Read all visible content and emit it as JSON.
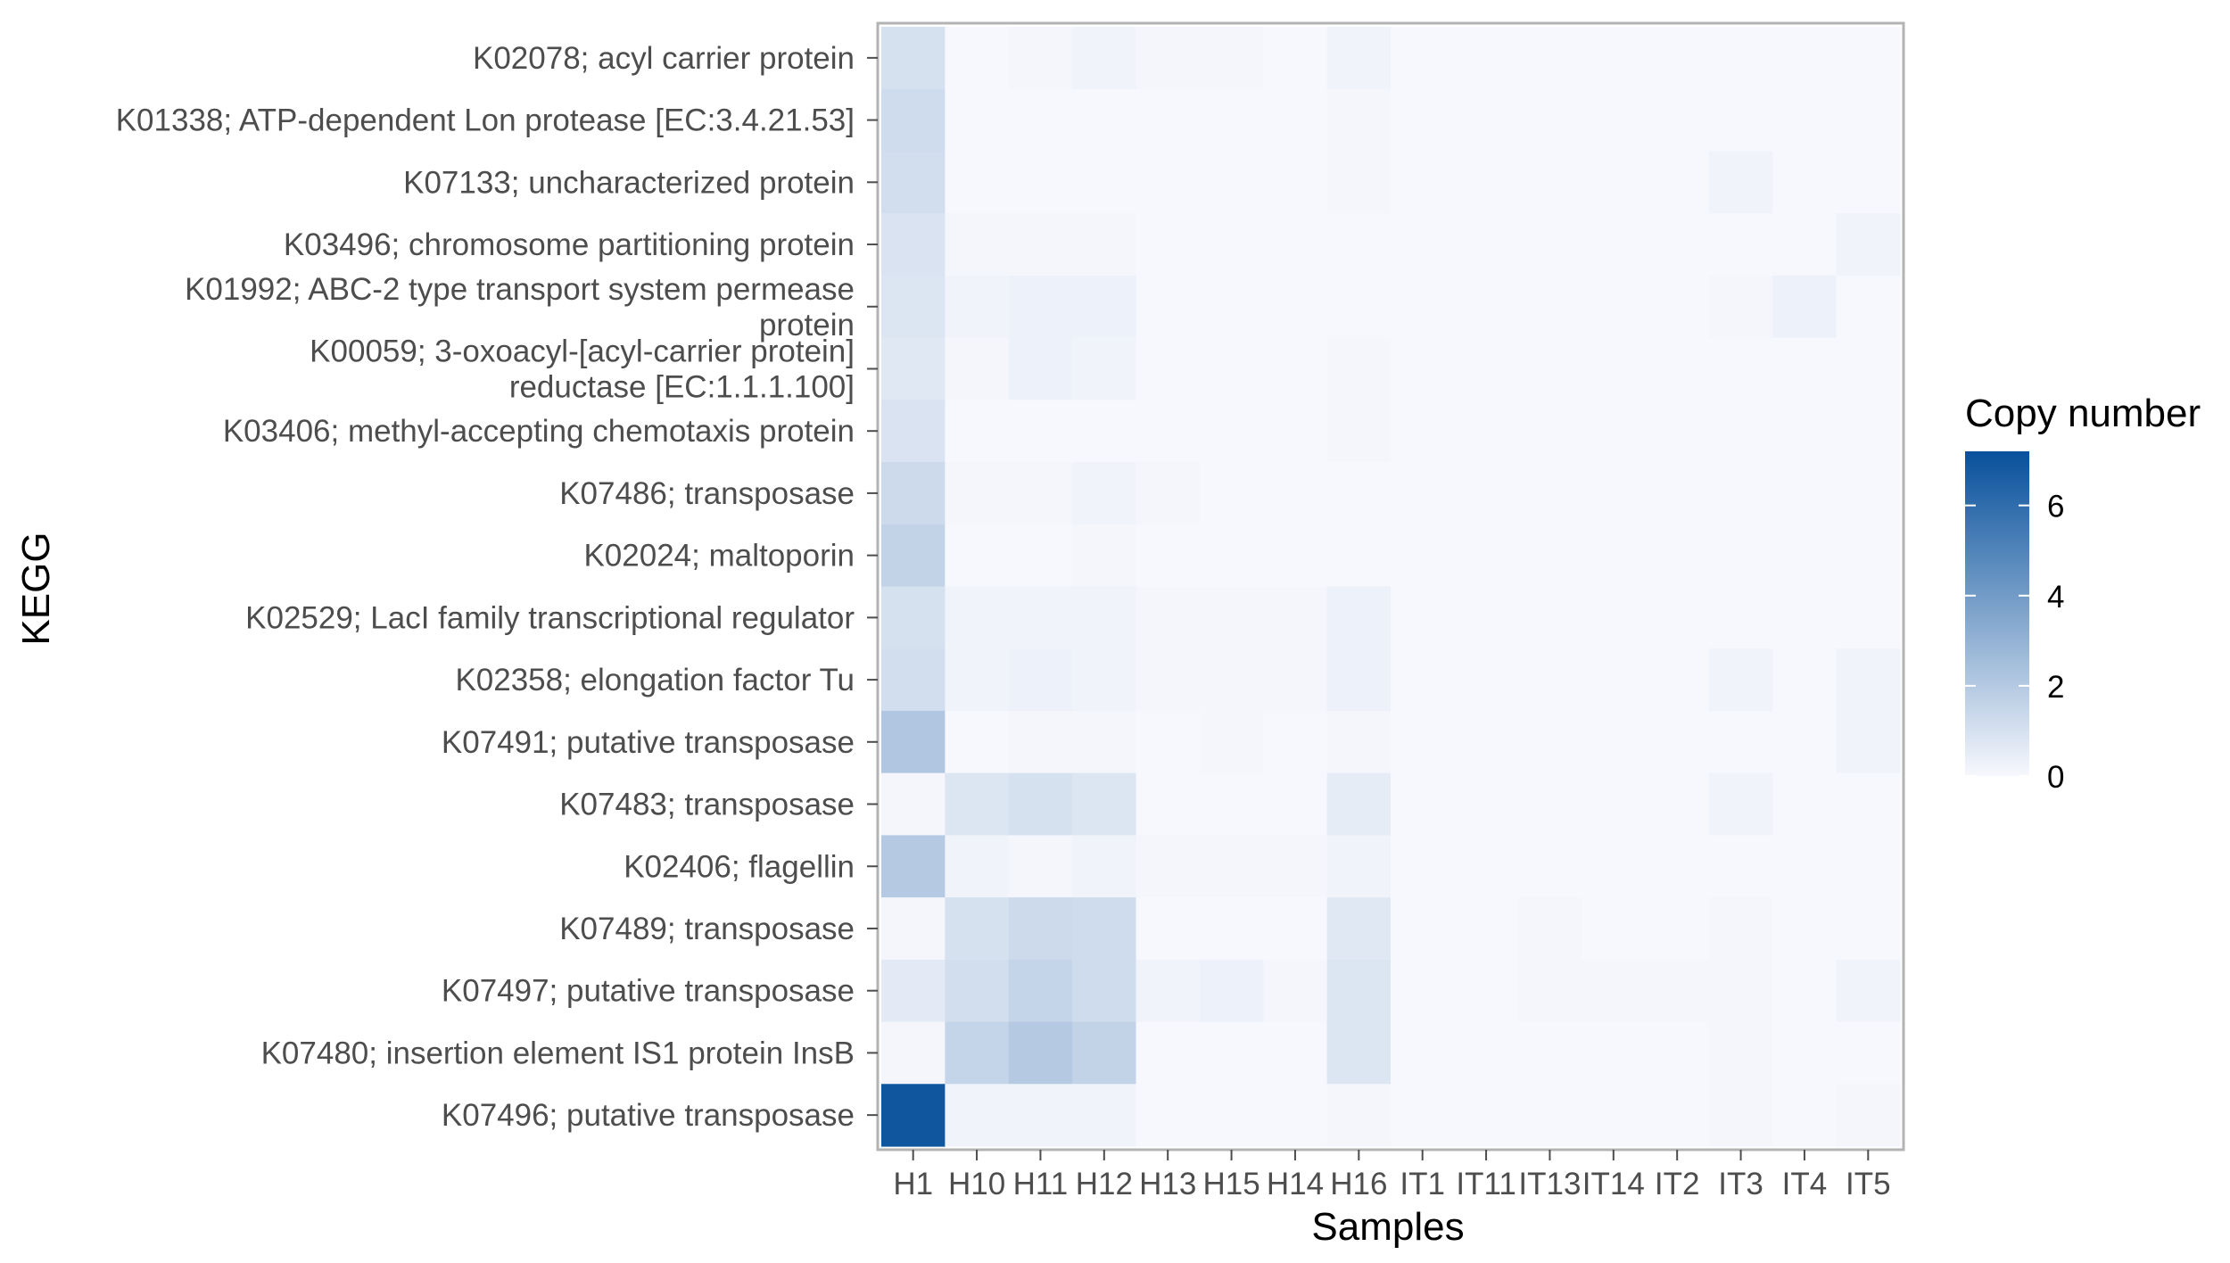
{
  "chart_data": {
    "type": "heatmap",
    "title": "",
    "xlabel": "Samples",
    "ylabel": "KEGG",
    "x_categories": [
      "H1",
      "H10",
      "H11",
      "H12",
      "H13",
      "H15",
      "H14",
      "H16",
      "IT1",
      "IT11",
      "IT13",
      "IT14",
      "IT2",
      "IT3",
      "IT4",
      "IT5"
    ],
    "y_categories": [
      [
        "K02078; acyl carrier protein"
      ],
      [
        "K01338; ATP-dependent Lon protease [EC:3.4.21.53]"
      ],
      [
        "K07133; uncharacterized protein"
      ],
      [
        "K03496; chromosome partitioning protein"
      ],
      [
        "K01992; ABC-2 type transport system permease",
        "protein"
      ],
      [
        "K00059; 3-oxoacyl-[acyl-carrier protein]",
        "reductase [EC:1.1.1.100]"
      ],
      [
        "K03406; methyl-accepting chemotaxis protein"
      ],
      [
        "K07486; transposase"
      ],
      [
        "K02024; maltoporin"
      ],
      [
        "K02529; LacI family transcriptional regulator"
      ],
      [
        "K02358; elongation factor Tu"
      ],
      [
        "K07491; putative transposase"
      ],
      [
        "K07483; transposase"
      ],
      [
        "K02406; flagellin"
      ],
      [
        "K07489; transposase"
      ],
      [
        "K07497; putative transposase"
      ],
      [
        "K07480; insertion element IS1 protein InsB"
      ],
      [
        "K07496; putative transposase"
      ]
    ],
    "values": [
      [
        1.0,
        0.0,
        0.1,
        0.2,
        0.1,
        0.1,
        0.0,
        0.2,
        0.0,
        0.0,
        0.0,
        0.0,
        0.0,
        0.0,
        0.0,
        0.0
      ],
      [
        1.2,
        0.0,
        0.0,
        0.0,
        0.0,
        0.0,
        0.0,
        0.1,
        0.0,
        0.0,
        0.0,
        0.0,
        0.0,
        0.0,
        0.0,
        0.0
      ],
      [
        1.1,
        0.0,
        0.0,
        0.0,
        0.0,
        0.0,
        0.0,
        0.1,
        0.0,
        0.0,
        0.0,
        0.0,
        0.0,
        0.2,
        0.0,
        0.0
      ],
      [
        0.9,
        0.1,
        0.1,
        0.1,
        0.0,
        0.0,
        0.0,
        0.0,
        0.0,
        0.0,
        0.0,
        0.0,
        0.0,
        0.0,
        0.0,
        0.2
      ],
      [
        0.8,
        0.2,
        0.3,
        0.3,
        0.0,
        0.0,
        0.0,
        0.0,
        0.0,
        0.0,
        0.0,
        0.0,
        0.0,
        0.1,
        0.3,
        0.0
      ],
      [
        0.7,
        0.1,
        0.3,
        0.2,
        0.0,
        0.0,
        0.0,
        0.1,
        0.0,
        0.0,
        0.0,
        0.0,
        0.0,
        0.0,
        0.0,
        0.0
      ],
      [
        0.9,
        0.0,
        0.0,
        0.0,
        0.0,
        0.0,
        0.0,
        0.1,
        0.0,
        0.0,
        0.0,
        0.0,
        0.0,
        0.0,
        0.0,
        0.0
      ],
      [
        1.3,
        0.1,
        0.1,
        0.2,
        0.1,
        0.0,
        0.0,
        0.0,
        0.0,
        0.0,
        0.0,
        0.0,
        0.0,
        0.0,
        0.0,
        0.0
      ],
      [
        1.6,
        0.0,
        0.0,
        0.1,
        0.0,
        0.0,
        0.0,
        0.0,
        0.0,
        0.0,
        0.0,
        0.0,
        0.0,
        0.0,
        0.0,
        0.0
      ],
      [
        1.0,
        0.2,
        0.2,
        0.2,
        0.1,
        0.1,
        0.1,
        0.3,
        0.0,
        0.0,
        0.0,
        0.0,
        0.0,
        0.0,
        0.0,
        0.0
      ],
      [
        1.1,
        0.2,
        0.3,
        0.2,
        0.1,
        0.1,
        0.1,
        0.3,
        0.0,
        0.0,
        0.0,
        0.0,
        0.0,
        0.2,
        0.0,
        0.2
      ],
      [
        2.1,
        0.0,
        0.1,
        0.1,
        0.0,
        0.1,
        0.0,
        0.1,
        0.0,
        0.0,
        0.0,
        0.0,
        0.0,
        0.0,
        0.0,
        0.2
      ],
      [
        0.1,
        0.8,
        1.0,
        0.8,
        0.0,
        0.0,
        0.0,
        0.5,
        0.0,
        0.0,
        0.0,
        0.0,
        0.0,
        0.2,
        0.0,
        0.0
      ],
      [
        2.0,
        0.2,
        0.1,
        0.2,
        0.1,
        0.1,
        0.1,
        0.2,
        0.0,
        0.0,
        0.0,
        0.0,
        0.0,
        0.0,
        0.0,
        0.0
      ],
      [
        0.1,
        1.0,
        1.3,
        1.2,
        0.0,
        0.0,
        0.0,
        0.7,
        0.0,
        0.0,
        0.1,
        0.0,
        0.0,
        0.1,
        0.0,
        0.0
      ],
      [
        0.6,
        1.1,
        1.5,
        1.2,
        0.2,
        0.3,
        0.1,
        0.8,
        0.0,
        0.0,
        0.1,
        0.1,
        0.1,
        0.1,
        0.0,
        0.2
      ],
      [
        0.1,
        1.5,
        2.0,
        1.6,
        0.0,
        0.0,
        0.0,
        0.8,
        0.0,
        0.0,
        0.0,
        0.0,
        0.0,
        0.1,
        0.0,
        0.0
      ],
      [
        7.0,
        0.2,
        0.2,
        0.2,
        0.0,
        0.0,
        0.0,
        0.1,
        0.0,
        0.0,
        0.0,
        0.0,
        0.0,
        0.1,
        0.0,
        0.1
      ]
    ],
    "legend": {
      "title": "Copy number",
      "breaks": [
        0,
        2,
        4,
        6
      ],
      "range": [
        0,
        7.2
      ],
      "placement": "right"
    },
    "colors": {
      "low": "#f7f8fd",
      "high": "#08519c",
      "panel_border": "#b3b3b3",
      "text": "#4d4d4d"
    },
    "grid": false
  }
}
